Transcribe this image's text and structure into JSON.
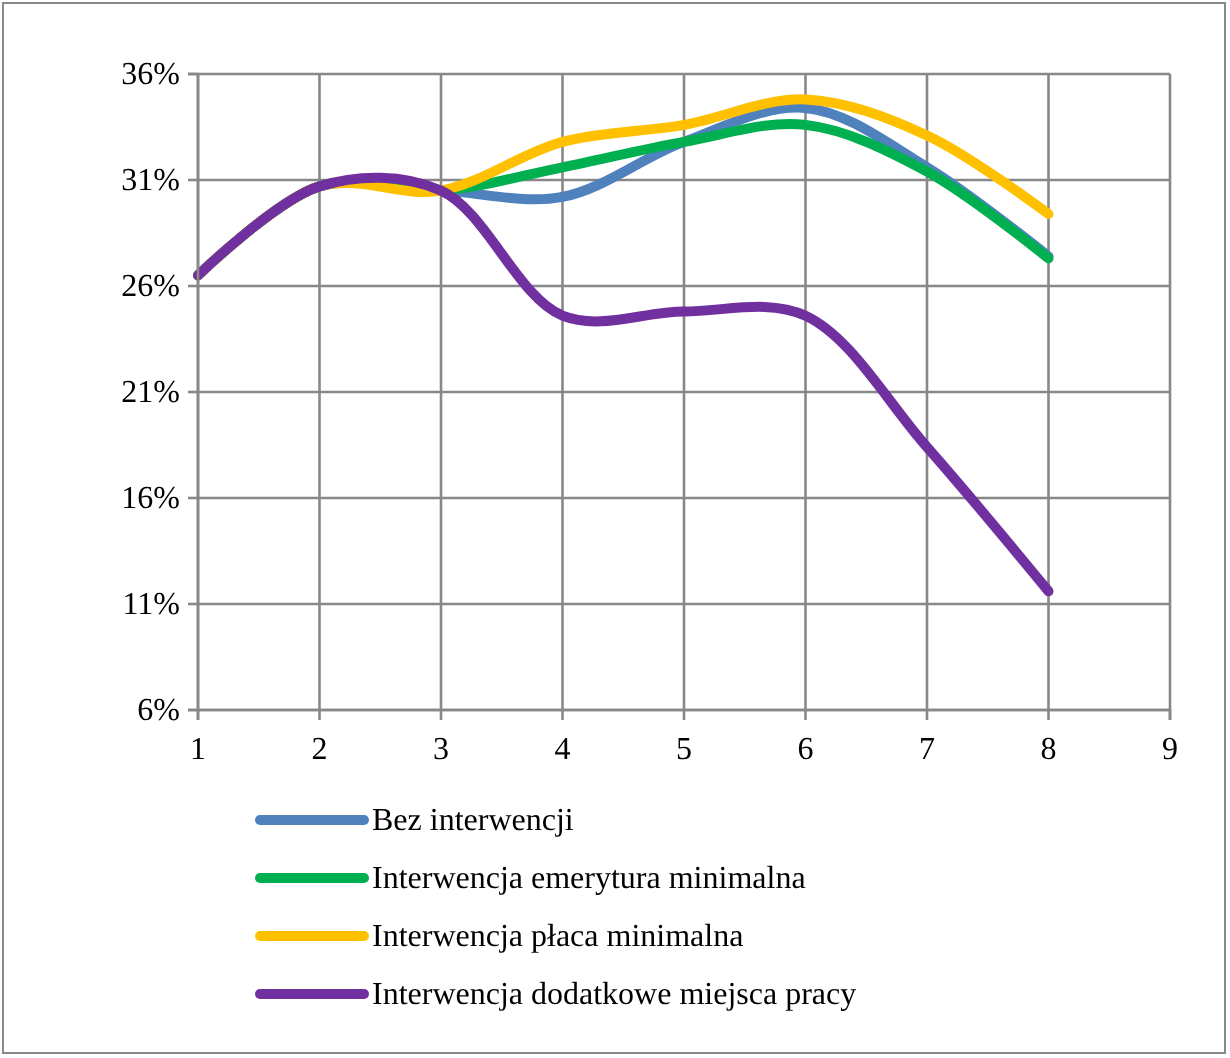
{
  "chart_data": {
    "type": "line",
    "x": [
      1,
      2,
      3,
      4,
      5,
      6,
      7,
      8
    ],
    "series": [
      {
        "name": "Bez interwencji",
        "color": "#4f81bd",
        "values": [
          26.5,
          30.7,
          30.5,
          30.2,
          32.8,
          34.4,
          31.6,
          27.4
        ]
      },
      {
        "name": "Interwencja emerytura minimalna",
        "color": "#00b050",
        "values": [
          26.5,
          30.7,
          30.5,
          31.6,
          32.8,
          33.6,
          31.4,
          27.3
        ]
      },
      {
        "name": "Interwencja płaca minimalna",
        "color": "#ffc000",
        "values": [
          26.5,
          30.7,
          30.5,
          32.8,
          33.6,
          34.8,
          33.1,
          29.4
        ]
      },
      {
        "name": "Interwencja dodatkowe miejsca pracy",
        "color": "#7030a0",
        "values": [
          26.5,
          30.7,
          30.5,
          24.6,
          24.8,
          24.6,
          18.4,
          11.6
        ]
      }
    ],
    "xlim": [
      1,
      9
    ],
    "xticks": [
      1,
      2,
      3,
      4,
      5,
      6,
      7,
      8,
      9
    ],
    "ylim": [
      6,
      36
    ],
    "yticks": [
      {
        "value": 6,
        "label": "6%"
      },
      {
        "value": 11,
        "label": "11%"
      },
      {
        "value": 16,
        "label": "16%"
      },
      {
        "value": 21,
        "label": "21%"
      },
      {
        "value": 26,
        "label": "26%"
      },
      {
        "value": 31,
        "label": "31%"
      },
      {
        "value": 36,
        "label": "36%"
      }
    ],
    "grid": true,
    "legend": "bottom",
    "marker": "none",
    "line_style": "solid"
  }
}
